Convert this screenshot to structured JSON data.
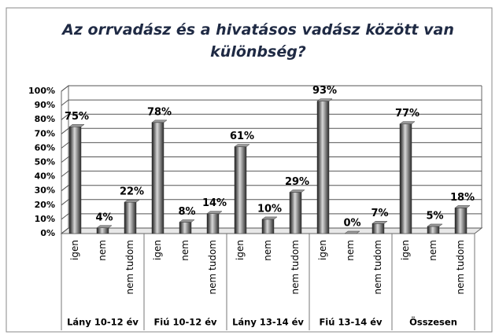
{
  "chart_data": {
    "type": "bar",
    "title": "Az orrvadász és a hivatásos vadász között van különbség?",
    "categories": [
      "igen",
      "nem",
      "nem tudom",
      "igen",
      "nem",
      "nem tudom",
      "igen",
      "nem",
      "nem tudom",
      "igen",
      "nem",
      "nem tudom",
      "igen",
      "nem",
      "nem tudom"
    ],
    "groups": [
      "Lány 10-12 év",
      "Fiú 10-12 év",
      "Lány 13-14 év",
      "Fiú 13-14 év",
      "Összesen"
    ],
    "values": [
      75,
      4,
      22,
      78,
      8,
      14,
      61,
      10,
      29,
      93,
      0,
      7,
      77,
      5,
      18
    ],
    "value_labels": [
      "75%",
      "4%",
      "22%",
      "78%",
      "8%",
      "14%",
      "61%",
      "10%",
      "29%",
      "93%",
      "0%",
      "7%",
      "77%",
      "5%",
      "18%"
    ],
    "color": "#3a3a3a",
    "ylim": [
      0,
      100
    ],
    "yticks": [
      {
        "value": 0,
        "label": "0%"
      },
      {
        "value": 10,
        "label": "10%"
      },
      {
        "value": 20,
        "label": "20%"
      },
      {
        "value": 30,
        "label": "30%"
      },
      {
        "value": 40,
        "label": "40%"
      },
      {
        "value": 50,
        "label": "50%"
      },
      {
        "value": 60,
        "label": "60%"
      },
      {
        "value": 70,
        "label": "70%"
      },
      {
        "value": 80,
        "label": "80%"
      },
      {
        "value": 90,
        "label": "90%"
      },
      {
        "value": 100,
        "label": "100%"
      }
    ],
    "grid": true
  }
}
